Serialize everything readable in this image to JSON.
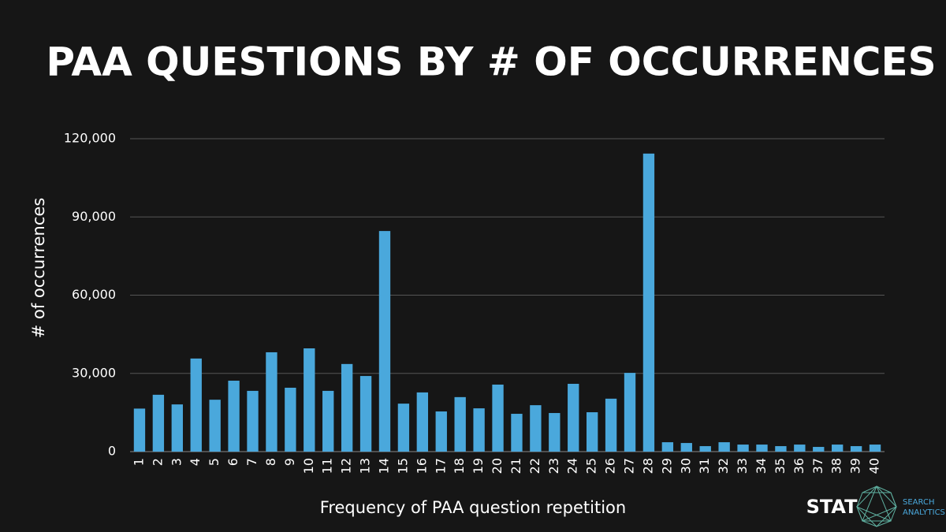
{
  "chart_data": {
    "type": "bar",
    "title": "PAA QUESTIONS BY # OF OCCURRENCES",
    "x_label": "Frequency of PAA question repetition",
    "y_label": "# of occurrences",
    "categories": [
      "1",
      "2",
      "3",
      "4",
      "5",
      "6",
      "7",
      "8",
      "9",
      "10",
      "11",
      "12",
      "13",
      "14",
      "15",
      "16",
      "17",
      "18",
      "19",
      "20",
      "21",
      "22",
      "23",
      "24",
      "25",
      "26",
      "27",
      "28",
      "29",
      "30",
      "31",
      "32",
      "33",
      "34",
      "35",
      "36",
      "37",
      "38",
      "39",
      "40"
    ],
    "values": [
      16500,
      21800,
      18100,
      35700,
      19900,
      27200,
      23300,
      38100,
      24500,
      39600,
      23300,
      33600,
      29000,
      84600,
      18400,
      22700,
      15400,
      20900,
      16600,
      25700,
      14500,
      17800,
      14800,
      26000,
      15100,
      20300,
      30200,
      114300,
      3600,
      3300,
      2100,
      3600,
      2700,
      2700,
      2100,
      2700,
      1800,
      2700,
      2100,
      2700
    ],
    "color": "#4aa8dc",
    "ylim": [
      0,
      120000
    ],
    "yticks": [
      0,
      {
        "value": 30000,
        "label": "30,000"
      },
      {
        "value": 60000,
        "label": "60,000"
      },
      {
        "value": 90000,
        "label": "90,000"
      },
      {
        "value": 120000,
        "label": "120,000"
      }
    ],
    "grid": true
  },
  "logo": {
    "name": "STAT",
    "tagline_1": "SEARCH",
    "tagline_2": "ANALYTICS"
  }
}
